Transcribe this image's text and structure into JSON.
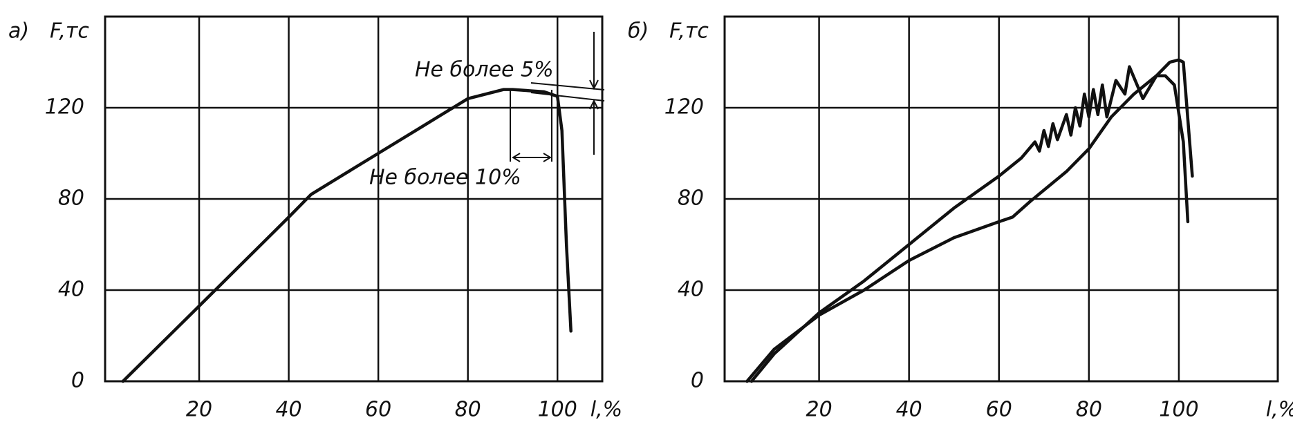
{
  "chart_data": [
    {
      "type": "line",
      "panel_label": "а)",
      "y_label": "F,тс",
      "x_label": "l,%",
      "xlim": [
        -1,
        110
      ],
      "ylim": [
        0,
        160
      ],
      "xticks": [
        20,
        40,
        60,
        80,
        100
      ],
      "yticks": [
        0,
        40,
        80,
        120
      ],
      "grid": true,
      "annotations": [
        "Не более 5%",
        "Не более 10%"
      ],
      "series": [
        {
          "color": "#111111",
          "x": [
            3,
            20,
            40,
            45,
            60,
            70,
            80,
            88,
            90,
            97,
            100,
            101,
            102,
            103
          ],
          "values": [
            0,
            33,
            72,
            82,
            100,
            112,
            124,
            128,
            128,
            127,
            125,
            110,
            60,
            22
          ]
        }
      ]
    },
    {
      "type": "line",
      "panel_label": "б)",
      "y_label": "F,тс",
      "x_label": "l,%",
      "xlim": [
        -1,
        122
      ],
      "ylim": [
        0,
        160
      ],
      "xticks": [
        20,
        40,
        60,
        80,
        100
      ],
      "yticks": [
        0,
        40,
        80,
        120
      ],
      "grid": true,
      "series": [
        {
          "color": "#111111",
          "x": [
            5,
            10,
            20,
            30,
            40,
            50,
            60,
            65,
            68,
            69,
            70,
            71,
            72,
            73,
            75,
            76,
            77,
            78,
            79,
            80,
            81,
            82,
            83,
            84,
            86,
            88,
            89,
            92,
            95,
            98,
            100,
            101,
            103
          ],
          "values": [
            0,
            12,
            30,
            44,
            60,
            76,
            90,
            98,
            105,
            101,
            110,
            103,
            113,
            106,
            117,
            108,
            120,
            112,
            126,
            116,
            128,
            117,
            130,
            116,
            132,
            126,
            138,
            124,
            134,
            140,
            141,
            140,
            90
          ]
        },
        {
          "color": "#111111",
          "x": [
            4,
            10,
            20,
            30,
            40,
            50,
            60,
            63,
            67,
            75,
            80,
            85,
            90,
            95,
            97,
            99,
            101,
            102
          ],
          "values": [
            0,
            14,
            29,
            40,
            53,
            63,
            70,
            72,
            79,
            92,
            102,
            116,
            126,
            134,
            134,
            130,
            105,
            70
          ]
        }
      ]
    }
  ]
}
